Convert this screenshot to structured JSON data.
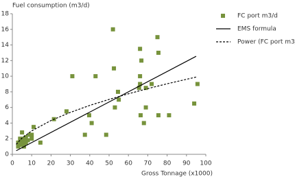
{
  "chart_data": {
    "type": "scatter",
    "title": "Fuel consumption (m3/d)",
    "x_label": "Gross Tonnage (x1000)",
    "xlim": [
      0,
      100
    ],
    "xticks": [
      0,
      10,
      20,
      30,
      40,
      50,
      60,
      70,
      80,
      90,
      100
    ],
    "ylim": [
      0,
      18
    ],
    "yticks": [
      0,
      2,
      4,
      6,
      8,
      10,
      12,
      14,
      16,
      18
    ],
    "grid": false,
    "legend": "right",
    "series": [
      {
        "name": "FC port m3/d",
        "type": "scatter",
        "color": "#77933c",
        "x": [
          52,
          75,
          66,
          75.5,
          66.7,
          31,
          43,
          52.5,
          66,
          95.7,
          72,
          66,
          69,
          65.5,
          54.6,
          55,
          53,
          69,
          94,
          66.3,
          75.5,
          81,
          68,
          28,
          21.5,
          39.7,
          41,
          37.5,
          48.5,
          11,
          14.5,
          3,
          3,
          4,
          5,
          5,
          6,
          7,
          7,
          8,
          9,
          10,
          10,
          4,
          6
        ],
        "values": [
          16,
          15,
          13.5,
          13,
          12,
          10,
          10,
          11,
          10,
          9,
          9,
          9,
          8.5,
          8.5,
          8,
          7,
          6,
          6,
          6.5,
          5,
          5,
          5,
          4,
          5.5,
          4.5,
          5,
          4,
          2.5,
          2.5,
          3.5,
          1.5,
          1.5,
          1,
          2,
          2.8,
          1.5,
          2,
          1.5,
          2.2,
          1.8,
          2.5,
          2,
          2.5,
          1.2,
          1
        ]
      },
      {
        "name": "EMS formula",
        "type": "line",
        "color": "#000000",
        "dash": false,
        "x": [
          2,
          95
        ],
        "values": [
          0.46,
          12.55
        ]
      },
      {
        "name": "Power (FC port m3/",
        "type": "line",
        "color": "#000000",
        "dash": true,
        "x": [
          2,
          5,
          10,
          20,
          30,
          40,
          50,
          60,
          70,
          80,
          95
        ],
        "values": [
          1.28,
          2.08,
          3.0,
          4.33,
          5.37,
          6.26,
          7.03,
          7.75,
          8.41,
          9.03,
          9.89
        ]
      }
    ]
  }
}
